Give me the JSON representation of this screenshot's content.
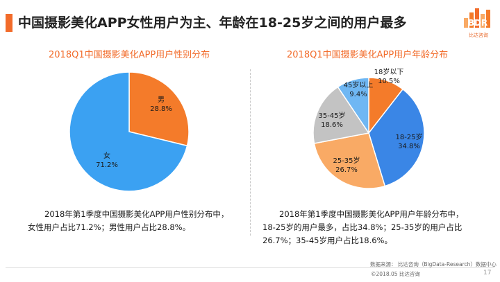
{
  "header": {
    "title": "中国摄影美化APP女性用户为主、年龄在18-25岁之间的用户最多",
    "accent_color": "#f26b2a",
    "logo_text": "BDR",
    "logo_subtitle": "比达咨询"
  },
  "chart_data": [
    {
      "type": "pie",
      "title": "2018Q1中国摄影美化APP用户性别分布",
      "slices": [
        {
          "label": "男",
          "value": 28.8,
          "display": "28.8%",
          "color": "#f47b2a"
        },
        {
          "label": "女",
          "value": 71.2,
          "display": "71.2%",
          "color": "#3ba1f2"
        }
      ]
    },
    {
      "type": "pie",
      "title": "2018Q1中国摄影美化APP用户年龄分布",
      "slices": [
        {
          "label": "18岁以下",
          "value": 10.5,
          "display": "10.5%",
          "color": "#f47b2a"
        },
        {
          "label": "18-25岁",
          "value": 34.8,
          "display": "34.8%",
          "color": "#3a86e6"
        },
        {
          "label": "25-35岁",
          "value": 26.7,
          "display": "26.7%",
          "color": "#f9aa65"
        },
        {
          "label": "35-45岁",
          "value": 18.6,
          "display": "18.6%",
          "color": "#c3c3c3"
        },
        {
          "label": "45岁以上",
          "value": 9.4,
          "display": "9.4%",
          "color": "#6fb7f3"
        }
      ]
    }
  ],
  "descriptions": {
    "gender": "2018年第1季度中国摄影美化APP用户性别分布中，女性用户占比71.2%；男性用户占比28.8%。",
    "age": "2018年第1季度中国摄影美化APP用户年龄分布中，18-25岁的用户最多，占比34.8%；25-35岁的用户占比26.7%；35-45岁用户占比18.6%。"
  },
  "footer": {
    "source": "数据来源：  比达咨询（BigData-Research）数据中心",
    "copyright": "©2018.05   比达咨询",
    "page_number": "17"
  }
}
